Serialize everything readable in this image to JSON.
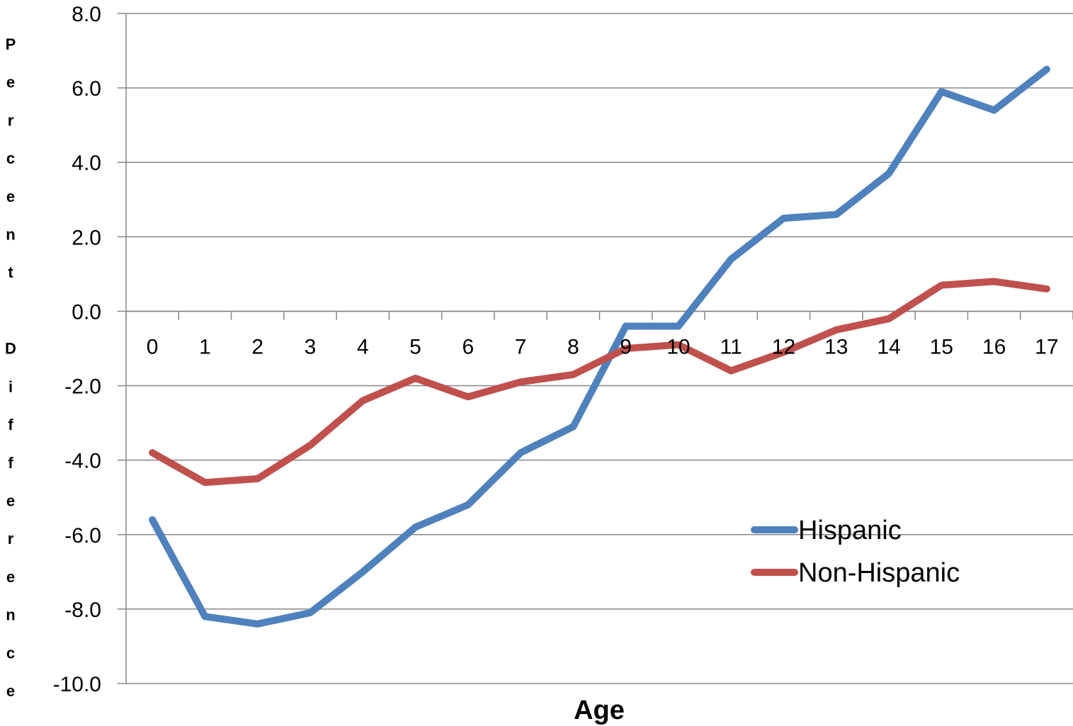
{
  "chart_data": {
    "type": "line",
    "title": "",
    "xlabel": "Age",
    "ylabel": "Percent Difference",
    "categories": [
      "0",
      "1",
      "2",
      "3",
      "4",
      "5",
      "6",
      "7",
      "8",
      "9",
      "10",
      "11",
      "12",
      "13",
      "14",
      "15",
      "16",
      "17"
    ],
    "ylim": [
      -10,
      8
    ],
    "yticks": [
      "8.0",
      "6.0",
      "4.0",
      "2.0",
      "0.0",
      "-2.0",
      "-4.0",
      "-6.0",
      "-8.0",
      "-10.0"
    ],
    "grid": true,
    "legend_position": "lower-right",
    "series": [
      {
        "name": "Hispanic",
        "color": "#4F81BD",
        "values": [
          -5.6,
          -8.2,
          -8.4,
          -8.1,
          -7.0,
          -5.8,
          -5.2,
          -3.8,
          -3.1,
          -0.4,
          -0.4,
          1.4,
          2.5,
          2.6,
          3.7,
          5.9,
          5.4,
          6.5
        ]
      },
      {
        "name": "Non-Hispanic",
        "color": "#C0504D",
        "values": [
          -3.8,
          -4.6,
          -4.5,
          -3.6,
          -2.4,
          -1.8,
          -2.3,
          -1.9,
          -1.7,
          -1.0,
          -0.9,
          -1.6,
          -1.1,
          -0.5,
          -0.2,
          0.7,
          0.8,
          0.6
        ]
      }
    ]
  }
}
